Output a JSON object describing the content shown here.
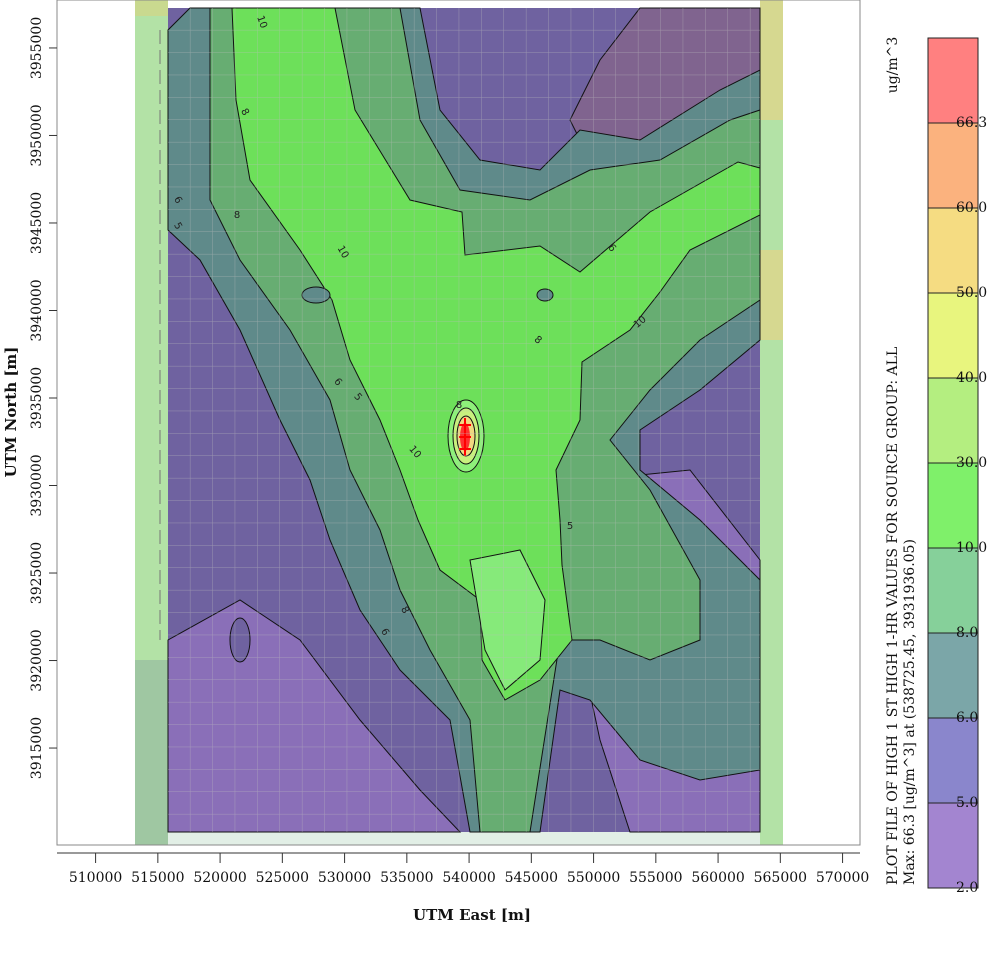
{
  "chart_data": {
    "type": "contour",
    "title": "PLOT FILE OF HIGH 1 ST HIGH 1-HR VALUES FOR SOURCE GROUP: ALL",
    "subtitle": "Max: 66.3 [ug/m^3] at (538725.45, 3931936.05)",
    "x_label": "UTM East [m]",
    "y_label": "UTM North [m]",
    "xlim": [
      506900,
      571400
    ],
    "ylim": [
      3909460,
      3957740
    ],
    "xticks": [
      510000,
      515000,
      520000,
      525000,
      530000,
      535000,
      540000,
      545000,
      550000,
      555000,
      560000,
      565000,
      570000
    ],
    "yticks": [
      3915000,
      3920000,
      3925000,
      3930000,
      3935000,
      3940000,
      3945000,
      3950000,
      3955000
    ],
    "contour_labels": [
      "10",
      "8",
      "6",
      "5",
      "10",
      "8",
      "6",
      "5",
      "10",
      "8",
      "6",
      "10",
      "8",
      "5",
      "8",
      "6"
    ],
    "colorbar": {
      "unit": "ug/m^3",
      "levels": [
        {
          "value": 2,
          "label": "2.0"
        },
        {
          "value": 5,
          "label": "5.0"
        },
        {
          "value": 6,
          "label": "6.0"
        },
        {
          "value": 8,
          "label": "8.0"
        },
        {
          "value": 10,
          "label": "10.0"
        },
        {
          "value": 30,
          "label": "30.0"
        },
        {
          "value": 40,
          "label": "40.0"
        },
        {
          "value": 50,
          "label": "50.0"
        },
        {
          "value": 60,
          "label": "60.0"
        },
        66.3
      ],
      "colors": [
        "#a385d0",
        "#8a86cc",
        "#7ba6a8",
        "#86d09a",
        "#7ff06a",
        "#b4ee80",
        "#e8f57e",
        "#f5dc82",
        "#fbb27e",
        "#ff8080"
      ]
    }
  }
}
